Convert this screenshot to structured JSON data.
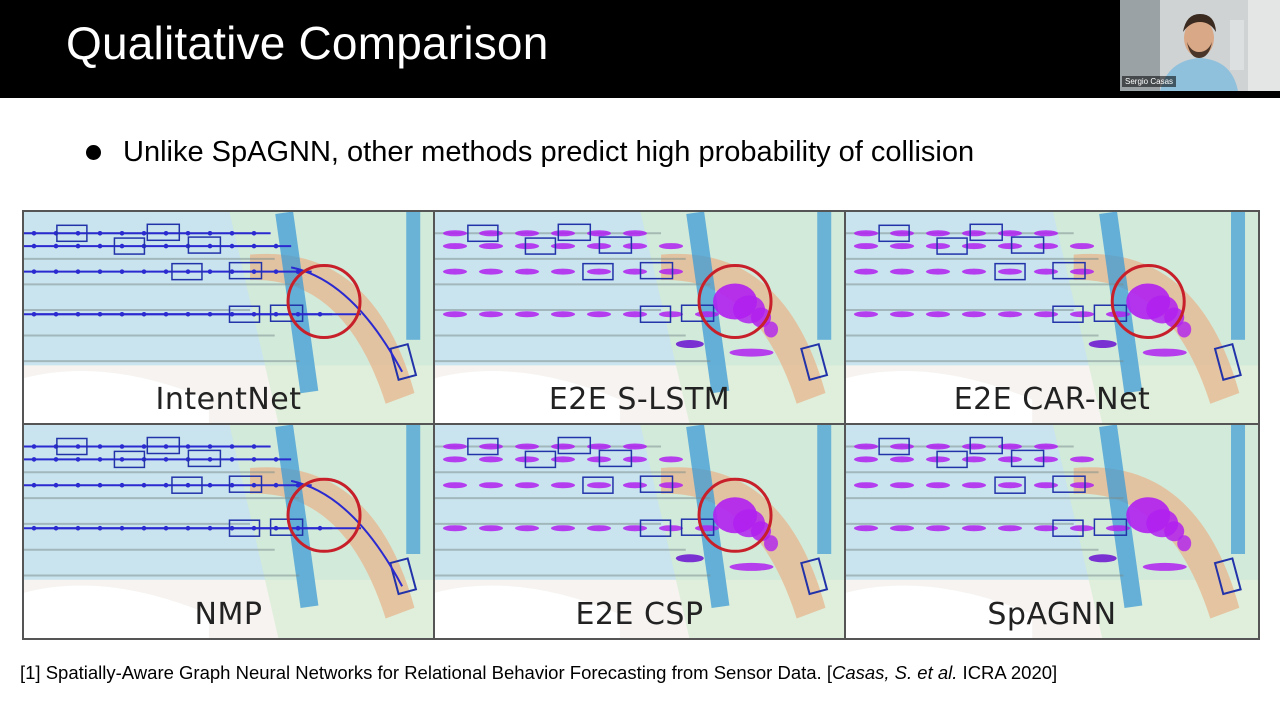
{
  "slide": {
    "title": "Qualitative Comparison",
    "bullet": "Unlike SpAGNN, other methods predict high probability of collision"
  },
  "webcam": {
    "name": "Sergio Casas"
  },
  "panels": [
    {
      "label": "IntentNet",
      "style": "blue"
    },
    {
      "label": "E2E S-LSTM",
      "style": "purple"
    },
    {
      "label": "E2E CAR-Net",
      "style": "purple"
    },
    {
      "label": "NMP",
      "style": "blue"
    },
    {
      "label": "E2E CSP",
      "style": "purple"
    },
    {
      "label": "SpAGNN",
      "style": "purple-nocircle"
    }
  ],
  "citation": {
    "prefix": "[1] Spatially-Aware Graph Neural Networks for Relational Behavior Forecasting from Sensor Data. [",
    "authors": "Casas, S. et al.",
    "suffix": " ICRA 2020]"
  },
  "colors": {
    "title_bg": "#000000",
    "highlight_circle": "#c8202a",
    "prediction_blue": "#2a2ad0",
    "prediction_purple": "#b020f0"
  }
}
